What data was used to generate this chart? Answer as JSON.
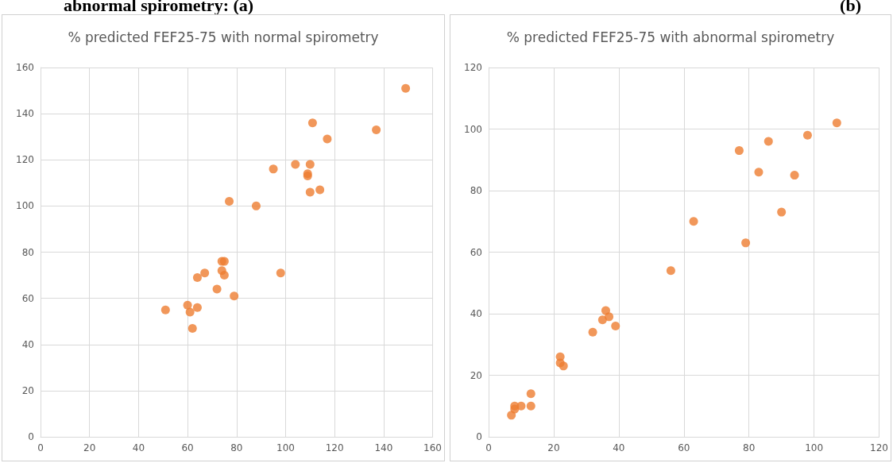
{
  "chart_data": [
    {
      "type": "scatter",
      "title": "% predicted FEF25-75 with normal spirometry",
      "annotations": [
        "abnormal spirometry:  (a)"
      ],
      "marker": "circle",
      "grid": true,
      "series": [
        {
          "color": "#ed7d31",
          "x": [
            51,
            60,
            61,
            62,
            64,
            64,
            67,
            72,
            74,
            75,
            74,
            75,
            77,
            79,
            88,
            95,
            98,
            104,
            109,
            110,
            110,
            111,
            114,
            117,
            137,
            149,
            109
          ],
          "values": [
            55,
            57,
            54,
            47,
            56,
            69,
            71,
            64,
            76,
            76,
            72,
            70,
            102,
            61,
            100,
            116,
            71,
            118,
            113,
            118,
            106,
            136,
            107,
            129,
            133,
            151,
            114
          ]
        }
      ],
      "xlim": [
        0,
        160
      ],
      "xticks": [
        0,
        20,
        40,
        60,
        80,
        100,
        120,
        140,
        160
      ],
      "ylim": [
        0,
        160
      ],
      "yticks": [
        0,
        20,
        40,
        60,
        80,
        100,
        120,
        140,
        160
      ]
    },
    {
      "type": "scatter",
      "title": "% predicted FEF25-75 with abnormal spirometry",
      "annotations": [
        "(b)"
      ],
      "marker": "circle",
      "grid": true,
      "series": [
        {
          "color": "#ed7d31",
          "x": [
            7,
            8,
            8,
            10,
            13,
            13,
            22,
            22,
            23,
            32,
            35,
            36,
            37,
            39,
            56,
            63,
            77,
            79,
            83,
            86,
            90,
            94,
            98,
            107
          ],
          "values": [
            7,
            9,
            10,
            10,
            10,
            14,
            26,
            24,
            23,
            34,
            38,
            41,
            39,
            36,
            54,
            70,
            93,
            63,
            86,
            96,
            73,
            85,
            98,
            102
          ]
        }
      ],
      "xlim": [
        0,
        120
      ],
      "xticks": [
        0,
        20,
        40,
        60,
        80,
        100,
        120
      ],
      "ylim": [
        0,
        120
      ],
      "yticks": [
        0,
        20,
        40,
        60,
        80,
        100,
        120
      ]
    }
  ]
}
